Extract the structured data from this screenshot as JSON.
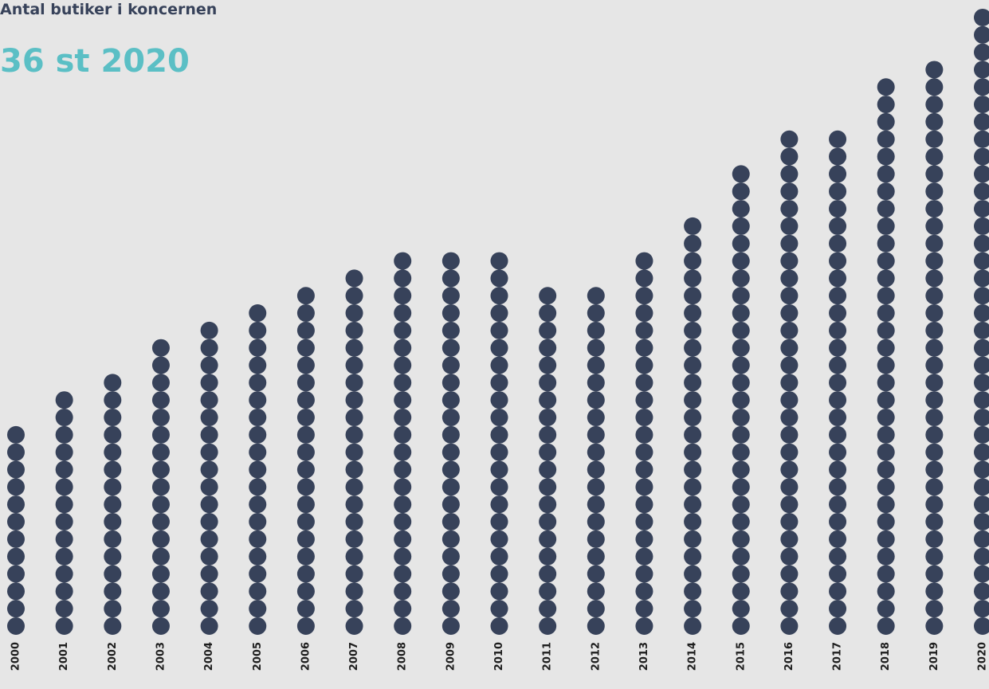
{
  "chart_data": {
    "type": "dotcolumn",
    "title": "Antal butiker i koncernen",
    "subtitle": "36 st 2020",
    "categories": [
      "2000",
      "2001",
      "2002",
      "2003",
      "2004",
      "2005",
      "2006",
      "2007",
      "2008",
      "2009",
      "2010",
      "2011",
      "2012",
      "2013",
      "2014",
      "2015",
      "2016",
      "2017",
      "2018",
      "2019",
      "2020"
    ],
    "values": [
      12,
      14,
      15,
      17,
      18,
      19,
      20,
      21,
      22,
      22,
      22,
      20,
      20,
      22,
      24,
      27,
      29,
      29,
      32,
      33,
      36
    ],
    "color": "#37425a"
  }
}
